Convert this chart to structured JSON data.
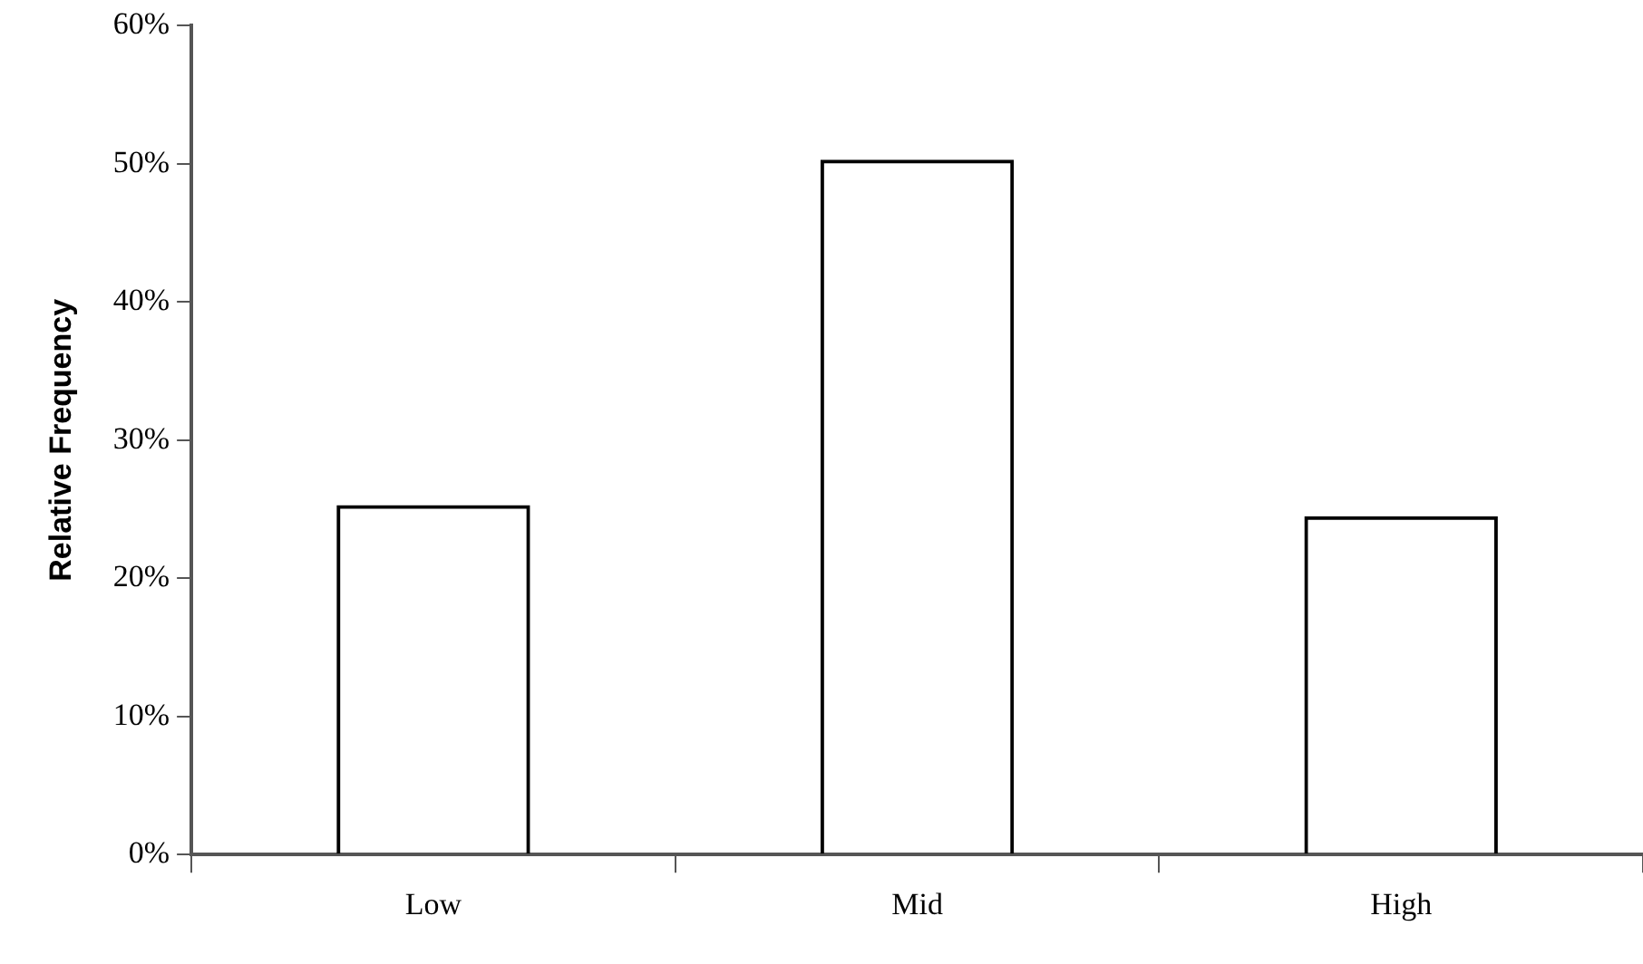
{
  "chart_data": {
    "type": "bar",
    "ylabel": "Relative Frequency",
    "categories": [
      "Low",
      "Mid",
      "High"
    ],
    "series": [
      {
        "color": "#000000",
        "values": [
          25.3,
          50.3,
          24.5
        ]
      }
    ],
    "ylim": [
      0,
      60
    ],
    "yticks": [
      {
        "value": 0,
        "label": "0%"
      },
      {
        "value": 10,
        "label": "10%"
      },
      {
        "value": 20,
        "label": "20%"
      },
      {
        "value": 30,
        "label": "30%"
      },
      {
        "value": 40,
        "label": "40%"
      },
      {
        "value": 50,
        "label": "50%"
      },
      {
        "value": 60,
        "label": "60%"
      }
    ],
    "grid": false,
    "legend": false
  }
}
